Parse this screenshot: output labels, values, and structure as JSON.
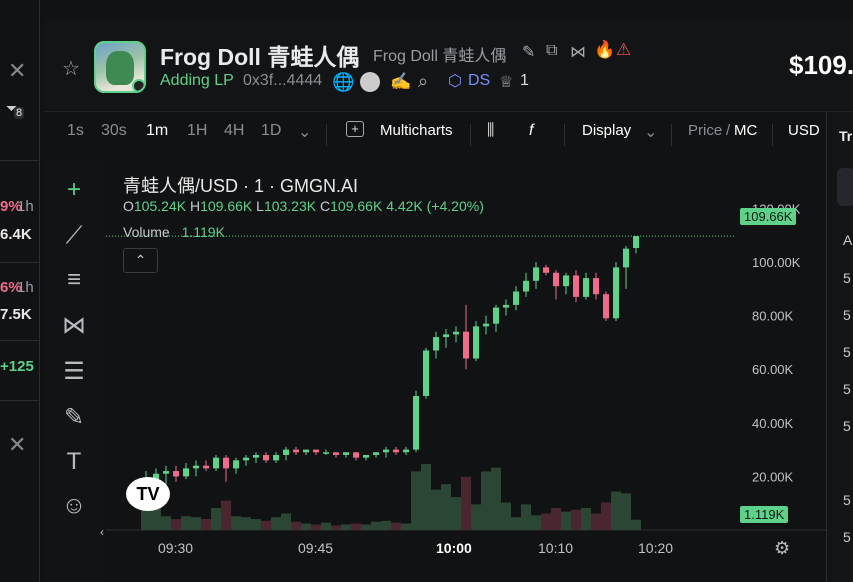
{
  "left_panel": {
    "close_top": "✕",
    "filter_count": "8",
    "row1_pct": "9%",
    "row1_tf": "1h",
    "row1_val": "6.4K",
    "row2_pct": "6%",
    "row2_tf": "1h",
    "row2_val": "7.5K",
    "row3_val": "+125",
    "close_bottom": "✕"
  },
  "token": {
    "name": "Frog Doll 青蛙人偶",
    "subname": "Frog Doll 青蛙人偶",
    "status": "Adding LP",
    "address": "0x3f...4444",
    "ds_label": "DS",
    "holders_count": "1",
    "price": "$109."
  },
  "toolbar": {
    "tf_1s": "1s",
    "tf_30s": "30s",
    "tf_1m": "1m",
    "tf_1h": "1H",
    "tf_4h": "4H",
    "tf_1d": "1D",
    "multicharts": "Multicharts",
    "fx": "f",
    "display": "Display",
    "price_label": "Price",
    "mc_label": "MC",
    "currency": "USD"
  },
  "chart_header": {
    "symbol": "青蛙人偶/USD · 1 · GMGN.AI",
    "o_label": "O",
    "o_value": "105.24K",
    "h_label": "H",
    "h_value": "109.66K",
    "l_label": "L",
    "l_value": "103.23K",
    "c_label": "C",
    "c_value": "109.66K",
    "change": "4.42K (+4.20%)",
    "volume_label": "Volume",
    "volume_value": "1.119K",
    "last_price_tag": "109.66K",
    "last_volume_tag": "1.119K"
  },
  "right_panel": {
    "tab_label": "Tr",
    "rows": [
      "A",
      "5",
      "5",
      "5",
      "5",
      "5",
      "5",
      "5"
    ]
  },
  "chart_data": {
    "type": "candlestick",
    "title": "青蛙人偶/USD · 1 · GMGN.AI",
    "y_ticks": [
      "120.00K",
      "100.00K",
      "80.00K",
      "60.00K",
      "40.00K",
      "20.00K"
    ],
    "y_tick_values": [
      120,
      100,
      80,
      60,
      40,
      20
    ],
    "x_ticks": [
      "09:30",
      "09:45",
      "10:00",
      "10:10",
      "10:20"
    ],
    "ylim": [
      0,
      128
    ],
    "grid": false,
    "colors": {
      "up": "#5ed18a",
      "down": "#f06a8a",
      "vol_up": "#2c4635",
      "vol_down": "#4a2630"
    },
    "candles": [
      {
        "o": 14,
        "h": 22,
        "l": 12,
        "c": 18
      },
      {
        "o": 18,
        "h": 23,
        "l": 15,
        "c": 21
      },
      {
        "o": 21,
        "h": 24,
        "l": 17,
        "c": 22
      },
      {
        "o": 22,
        "h": 24,
        "l": 18,
        "c": 20
      },
      {
        "o": 20,
        "h": 25,
        "l": 19,
        "c": 23
      },
      {
        "o": 23,
        "h": 26,
        "l": 20,
        "c": 24
      },
      {
        "o": 24,
        "h": 26,
        "l": 22,
        "c": 23
      },
      {
        "o": 23,
        "h": 28,
        "l": 22,
        "c": 27
      },
      {
        "o": 27,
        "h": 28,
        "l": 18,
        "c": 23
      },
      {
        "o": 23,
        "h": 27,
        "l": 21,
        "c": 26
      },
      {
        "o": 26,
        "h": 28,
        "l": 24,
        "c": 27
      },
      {
        "o": 27,
        "h": 29,
        "l": 25,
        "c": 28
      },
      {
        "o": 28,
        "h": 29,
        "l": 25,
        "c": 26
      },
      {
        "o": 26,
        "h": 29,
        "l": 25,
        "c": 28
      },
      {
        "o": 28,
        "h": 31,
        "l": 26,
        "c": 30
      },
      {
        "o": 30,
        "h": 31,
        "l": 28,
        "c": 29
      },
      {
        "o": 29,
        "h": 30,
        "l": 28,
        "c": 30
      },
      {
        "o": 30,
        "h": 30,
        "l": 28,
        "c": 29
      },
      {
        "o": 29,
        "h": 30,
        "l": 28,
        "c": 29
      },
      {
        "o": 29,
        "h": 29,
        "l": 27,
        "c": 28
      },
      {
        "o": 28,
        "h": 29,
        "l": 27,
        "c": 29
      },
      {
        "o": 29,
        "h": 29,
        "l": 26,
        "c": 27
      },
      {
        "o": 27,
        "h": 28,
        "l": 26,
        "c": 28
      },
      {
        "o": 28,
        "h": 29,
        "l": 27,
        "c": 29
      },
      {
        "o": 29,
        "h": 31,
        "l": 27,
        "c": 30
      },
      {
        "o": 30,
        "h": 31,
        "l": 28,
        "c": 29
      },
      {
        "o": 29,
        "h": 31,
        "l": 28,
        "c": 30
      },
      {
        "o": 30,
        "h": 52,
        "l": 29,
        "c": 50
      },
      {
        "o": 50,
        "h": 68,
        "l": 49,
        "c": 67
      },
      {
        "o": 67,
        "h": 74,
        "l": 64,
        "c": 72
      },
      {
        "o": 72,
        "h": 75,
        "l": 68,
        "c": 73
      },
      {
        "o": 73,
        "h": 76,
        "l": 70,
        "c": 74
      },
      {
        "o": 74,
        "h": 84,
        "l": 60,
        "c": 64
      },
      {
        "o": 64,
        "h": 78,
        "l": 63,
        "c": 76
      },
      {
        "o": 76,
        "h": 80,
        "l": 73,
        "c": 77
      },
      {
        "o": 77,
        "h": 84,
        "l": 74,
        "c": 83
      },
      {
        "o": 83,
        "h": 86,
        "l": 80,
        "c": 84
      },
      {
        "o": 84,
        "h": 91,
        "l": 82,
        "c": 89
      },
      {
        "o": 89,
        "h": 96,
        "l": 87,
        "c": 93
      },
      {
        "o": 93,
        "h": 100,
        "l": 90,
        "c": 98
      },
      {
        "o": 98,
        "h": 99,
        "l": 95,
        "c": 96
      },
      {
        "o": 96,
        "h": 97,
        "l": 86,
        "c": 91
      },
      {
        "o": 91,
        "h": 96,
        "l": 88,
        "c": 95
      },
      {
        "o": 95,
        "h": 97,
        "l": 85,
        "c": 87
      },
      {
        "o": 87,
        "h": 96,
        "l": 86,
        "c": 94
      },
      {
        "o": 94,
        "h": 96,
        "l": 86,
        "c": 88
      },
      {
        "o": 88,
        "h": 89,
        "l": 78,
        "c": 79
      },
      {
        "o": 79,
        "h": 100,
        "l": 78,
        "c": 98
      },
      {
        "o": 98,
        "h": 106,
        "l": 90,
        "c": 105
      },
      {
        "o": 105.24,
        "h": 109.66,
        "l": 103.23,
        "c": 109.66
      }
    ],
    "volumes": [
      4,
      3,
      1.5,
      1.2,
      1.5,
      1.4,
      1.2,
      2.4,
      3.2,
      1.5,
      1.4,
      1.2,
      1.0,
      1.4,
      1.8,
      0.9,
      0.7,
      0.6,
      0.8,
      0.5,
      0.6,
      0.7,
      0.6,
      0.9,
      1.0,
      0.8,
      0.7,
      6.4,
      7.2,
      4.4,
      5.0,
      3.6,
      5.8,
      2.8,
      6.4,
      6.8,
      3.0,
      1.4,
      2.8,
      1.6,
      1.8,
      2.4,
      2.0,
      2.2,
      2.4,
      1.8,
      3.0,
      4.2,
      4.0,
      1.119
    ]
  }
}
